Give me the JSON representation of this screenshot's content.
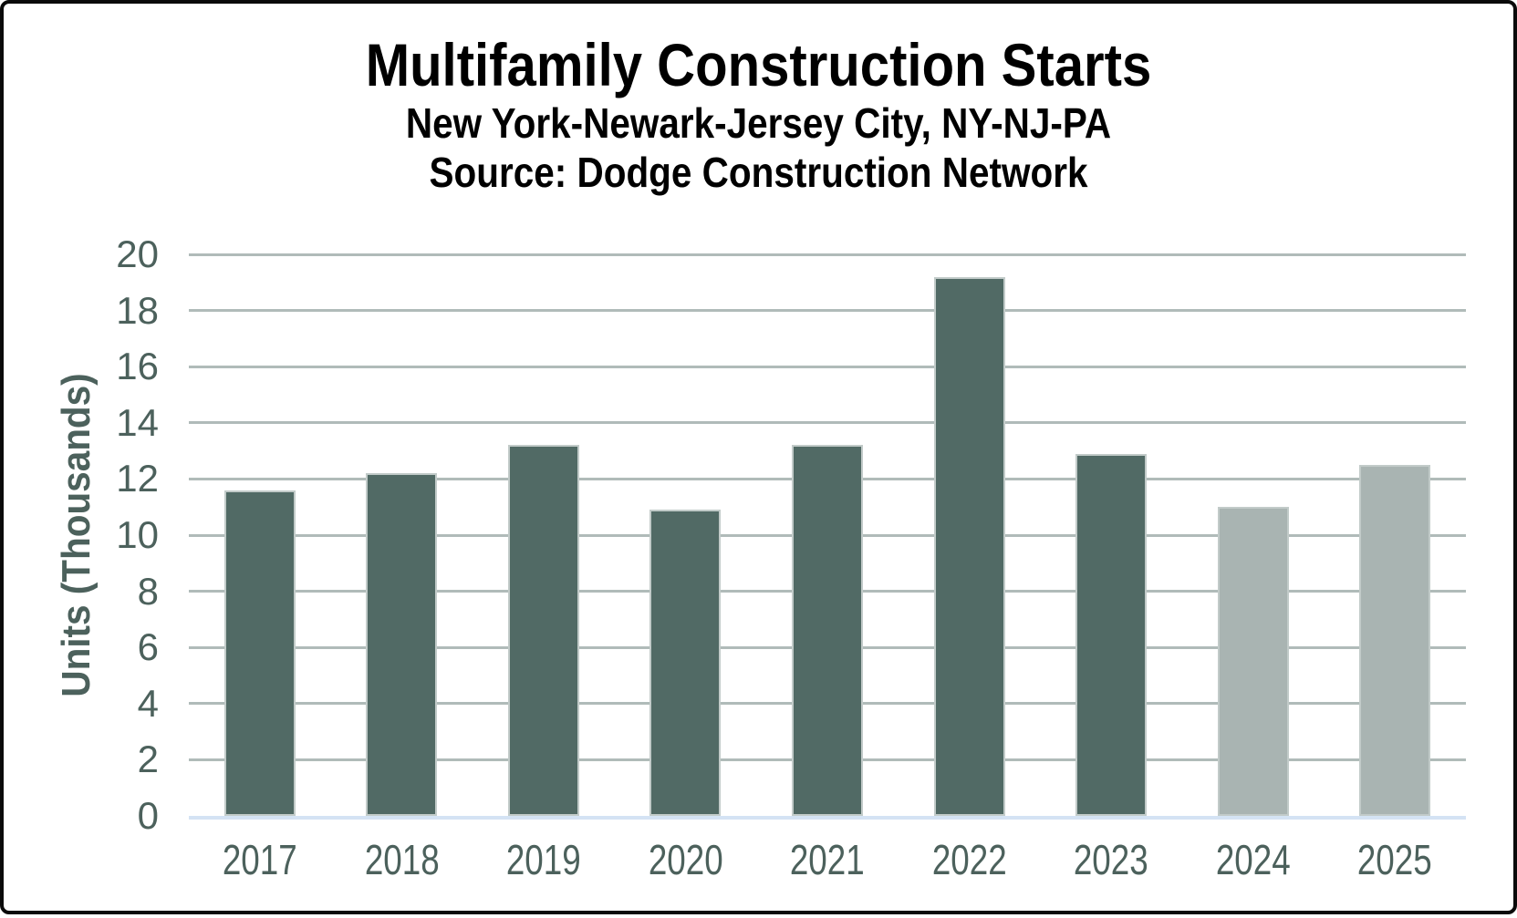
{
  "header": {
    "title": "Multifamily Construction Starts",
    "subtitle_line1": "New York-Newark-Jersey City, NY-NJ-PA",
    "subtitle_line2": "Source: Dodge Construction Network"
  },
  "chart_data": {
    "type": "bar",
    "title": "Multifamily Construction Starts",
    "subtitle": "New York-Newark-Jersey City, NY-NJ-PA — Source: Dodge Construction Network",
    "categories": [
      "2017",
      "2018",
      "2019",
      "2020",
      "2021",
      "2022",
      "2023",
      "2024",
      "2025"
    ],
    "values": [
      11.6,
      12.2,
      13.2,
      10.9,
      13.2,
      19.2,
      12.9,
      11.0,
      12.5
    ],
    "bar_styles": [
      "dark",
      "dark",
      "dark",
      "dark",
      "dark",
      "dark",
      "dark",
      "light",
      "light"
    ],
    "xlabel": "",
    "ylabel": "Units (Thousands)",
    "ylim": [
      0,
      20
    ],
    "ytick_step": 2,
    "ytick_labels": [
      "0",
      "2",
      "4",
      "6",
      "8",
      "10",
      "12",
      "14",
      "16",
      "18",
      "20"
    ],
    "grid": true,
    "legend": "none",
    "colors": {
      "dark_bar": "#516a65",
      "light_bar": "#a9b4b2",
      "gridline": "#b0bbb9",
      "baseline": "#d4e3f4",
      "axis_text": "#4c615c",
      "title_text": "#000000"
    }
  }
}
